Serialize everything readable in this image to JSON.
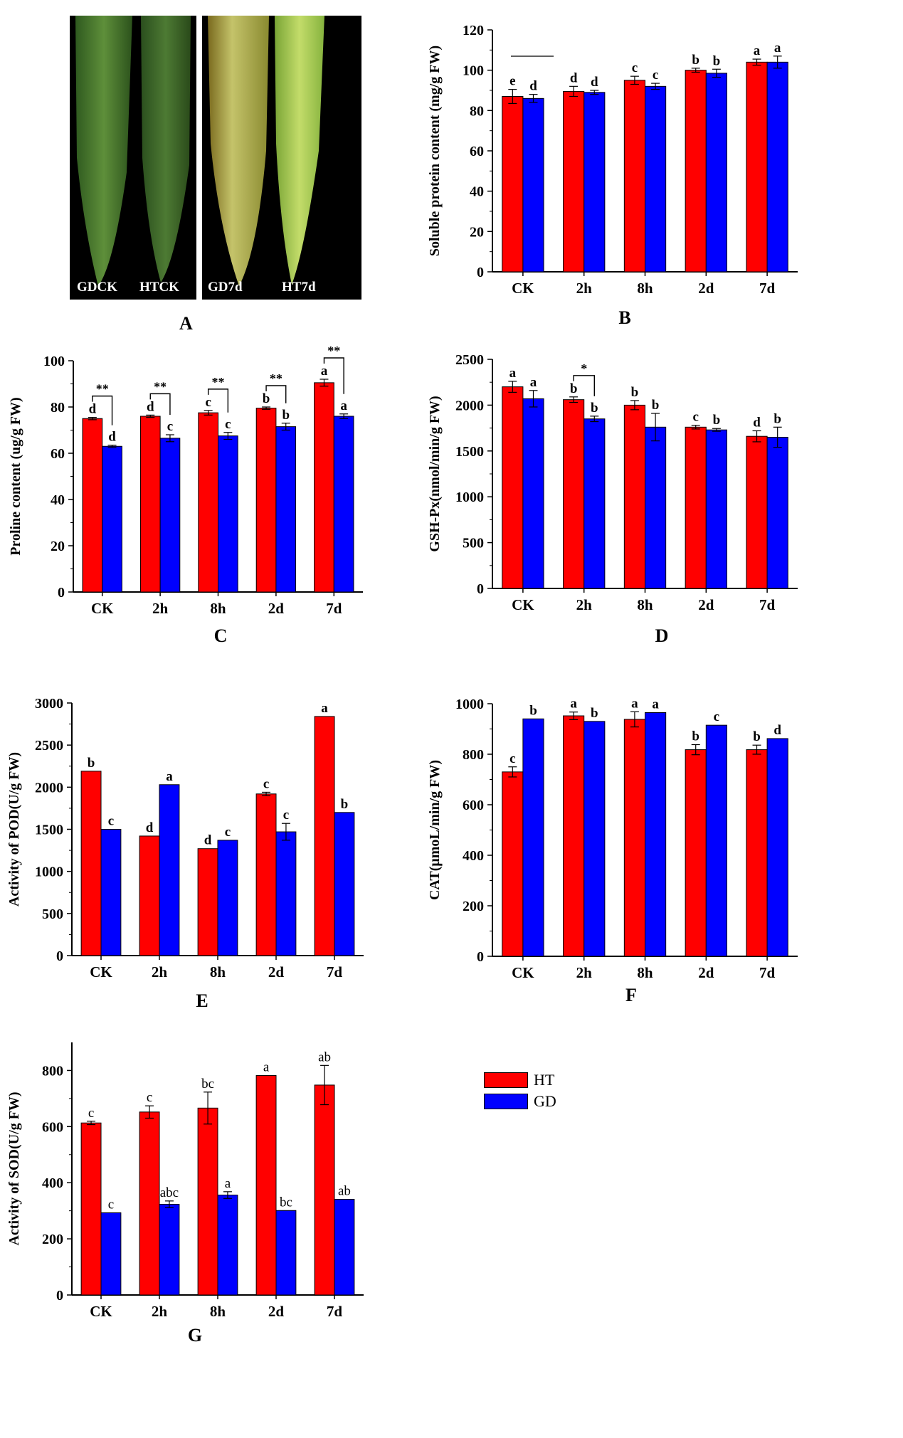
{
  "colors": {
    "ht": "#ff0000",
    "gd": "#0000ff"
  },
  "photo_panel": {
    "label": "A",
    "leaf_labels": [
      "GDCK",
      "HTCK",
      "GD7d",
      "HT7d"
    ]
  },
  "legend": {
    "ht": "HT",
    "gd": "GD"
  },
  "chart_data": [
    {
      "id": "B",
      "type": "bar",
      "panel_label": "B",
      "ylabel": "Soluble protein content (mg/g FW)",
      "categories": [
        "CK",
        "2h",
        "8h",
        "2d",
        "7d"
      ],
      "ylim": [
        0,
        120
      ],
      "yticks": [
        0,
        20,
        40,
        60,
        80,
        100,
        120
      ],
      "series": [
        {
          "key": "ht",
          "values": [
            87,
            89.5,
            95,
            100,
            104
          ],
          "errors": [
            3.5,
            2.5,
            2,
            1,
            1.5
          ],
          "letters": [
            "e",
            "d",
            "c",
            "b",
            "a"
          ]
        },
        {
          "key": "gd",
          "values": [
            86,
            89,
            92,
            98.5,
            104
          ],
          "errors": [
            2,
            1,
            1.5,
            2,
            3
          ],
          "letters": [
            "d",
            "d",
            "c",
            "b",
            "a"
          ]
        }
      ],
      "letter_style": "bold"
    },
    {
      "id": "C",
      "type": "bar",
      "panel_label": "C",
      "ylabel": "Proline content (ug/g FW)",
      "categories": [
        "CK",
        "2h",
        "8h",
        "2d",
        "7d"
      ],
      "ylim": [
        0,
        100
      ],
      "yticks": [
        0,
        20,
        40,
        60,
        80,
        100
      ],
      "series": [
        {
          "key": "ht",
          "values": [
            75,
            76,
            77.5,
            79.5,
            90.5
          ],
          "errors": [
            0.5,
            0.5,
            1,
            0.5,
            1.5
          ],
          "letters": [
            "d",
            "d",
            "c",
            "b",
            "a"
          ]
        },
        {
          "key": "gd",
          "values": [
            63,
            66.5,
            67.5,
            71.5,
            76
          ],
          "errors": [
            0.5,
            1.5,
            1.5,
            1.5,
            1
          ],
          "letters": [
            "d",
            "c",
            "c",
            "b",
            "a"
          ]
        }
      ],
      "significance": [
        "**",
        "**",
        "**",
        "**",
        "**"
      ],
      "letter_style": "bold"
    },
    {
      "id": "D",
      "type": "bar",
      "panel_label": "D",
      "ylabel": "GSH-Px(nmol/min/g FW)",
      "categories": [
        "CK",
        "2h",
        "8h",
        "2d",
        "7d"
      ],
      "ylim": [
        0,
        2500
      ],
      "yticks": [
        0,
        500,
        1000,
        1500,
        2000,
        2500
      ],
      "series": [
        {
          "key": "ht",
          "values": [
            2200,
            2060,
            2000,
            1760,
            1660
          ],
          "errors": [
            60,
            30,
            50,
            20,
            60
          ],
          "letters": [
            "a",
            "b",
            "b",
            "c",
            "d"
          ]
        },
        {
          "key": "gd",
          "values": [
            2070,
            1850,
            1760,
            1730,
            1650
          ],
          "errors": [
            90,
            30,
            150,
            15,
            110
          ],
          "letters": [
            "a",
            "b",
            "b",
            "b",
            "b"
          ]
        }
      ],
      "significance": [
        "",
        "*",
        "",
        "",
        ""
      ],
      "letter_style": "bold"
    },
    {
      "id": "E",
      "type": "bar",
      "panel_label": "E",
      "ylabel": "Activity of POD(U/g FW)",
      "categories": [
        "CK",
        "2h",
        "8h",
        "2d",
        "7d"
      ],
      "ylim": [
        0,
        3000
      ],
      "yticks": [
        0,
        500,
        1000,
        1500,
        2000,
        2500,
        3000
      ],
      "series": [
        {
          "key": "ht",
          "values": [
            2190,
            1420,
            1270,
            1920,
            2840
          ],
          "errors": [
            0,
            0,
            0,
            20,
            0
          ],
          "letters": [
            "b",
            "d",
            "d",
            "c",
            "a"
          ]
        },
        {
          "key": "gd",
          "values": [
            1500,
            2030,
            1370,
            1470,
            1700
          ],
          "errors": [
            0,
            0,
            0,
            100,
            0
          ],
          "letters": [
            "c",
            "a",
            "c",
            "c",
            "b"
          ]
        }
      ],
      "letter_style": "bold"
    },
    {
      "id": "F",
      "type": "bar",
      "panel_label": "F",
      "ylabel": "CAT(μmoL/min/g FW)",
      "categories": [
        "CK",
        "2h",
        "8h",
        "2d",
        "7d"
      ],
      "ylim": [
        0,
        1000
      ],
      "yticks": [
        0,
        200,
        400,
        600,
        800,
        1000
      ],
      "series": [
        {
          "key": "ht",
          "values": [
            730,
            952,
            938,
            818,
            818
          ],
          "errors": [
            20,
            15,
            30,
            20,
            18
          ],
          "letters": [
            "c",
            "a",
            "a",
            "b",
            "b"
          ]
        },
        {
          "key": "gd",
          "values": [
            940,
            930,
            965,
            915,
            862
          ],
          "errors": [
            0,
            0,
            0,
            0,
            0
          ],
          "letters": [
            "b",
            "b",
            "a",
            "c",
            "d"
          ]
        }
      ],
      "letter_style": "bold"
    },
    {
      "id": "G",
      "type": "bar",
      "panel_label": "G",
      "ylabel": "Activity of SOD(U/g FW)",
      "categories": [
        "CK",
        "2h",
        "8h",
        "2d",
        "7d"
      ],
      "ylim": [
        0,
        900
      ],
      "yticks": [
        0,
        200,
        400,
        600,
        800
      ],
      "series": [
        {
          "key": "ht",
          "values": [
            613,
            652,
            666,
            782,
            748
          ],
          "errors": [
            6,
            22,
            57,
            0,
            70
          ],
          "letters": [
            "c",
            "c",
            "bc",
            "a",
            "ab"
          ]
        },
        {
          "key": "gd",
          "values": [
            293,
            323,
            356,
            301,
            341
          ],
          "errors": [
            0,
            12,
            12,
            0,
            0
          ],
          "letters": [
            "c",
            "abc",
            "a",
            "bc",
            "ab"
          ]
        }
      ],
      "letter_style": "normal"
    }
  ]
}
